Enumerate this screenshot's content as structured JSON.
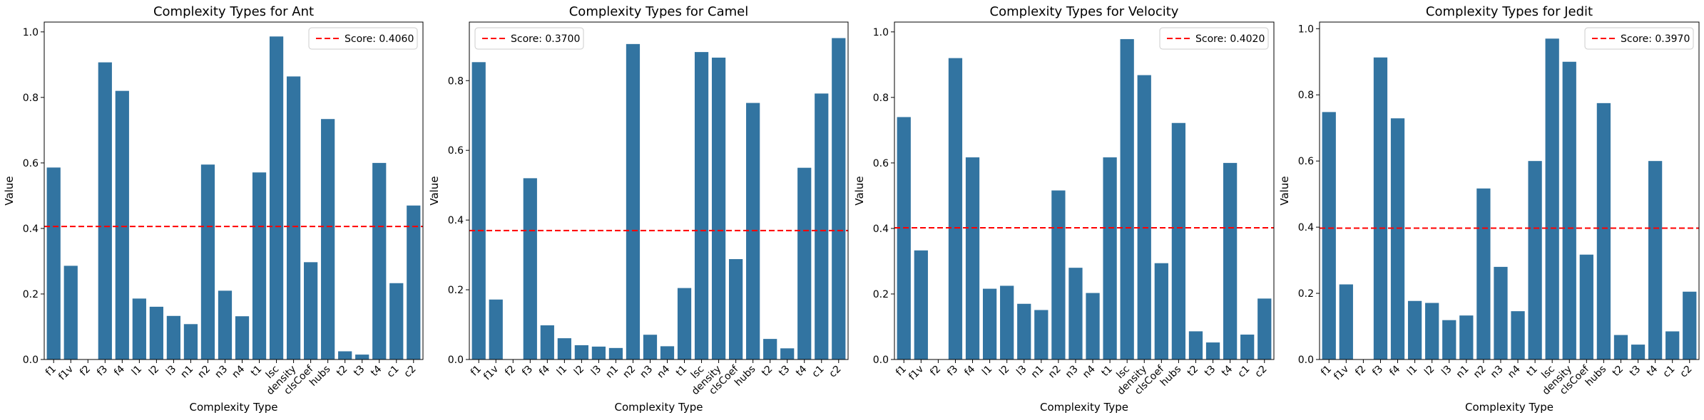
{
  "figure": {
    "background": "#ffffff"
  },
  "colors": {
    "bar": "#3274a1",
    "score_line": "#ff0000",
    "axis": "#000000"
  },
  "chart_data": [
    {
      "type": "bar",
      "title": "Complexity Types for Ant",
      "xlabel": "Complexity Type",
      "ylabel": "Value",
      "categories": [
        "f1",
        "f1v",
        "f2",
        "f3",
        "f4",
        "l1",
        "l2",
        "l3",
        "n1",
        "n2",
        "n3",
        "n4",
        "t1",
        "lsc",
        "density",
        "clsCoef",
        "hubs",
        "t2",
        "t3",
        "t4",
        "c1",
        "c2"
      ],
      "values": [
        0.586,
        0.286,
        0.0,
        0.907,
        0.82,
        0.186,
        0.161,
        0.133,
        0.108,
        0.595,
        0.21,
        0.132,
        0.571,
        0.986,
        0.864,
        0.297,
        0.734,
        0.025,
        0.015,
        0.6,
        0.233,
        0.47
      ],
      "ylim": [
        0,
        1.03
      ],
      "yticks": [
        0.0,
        0.2,
        0.4,
        0.6,
        0.8,
        1.0
      ],
      "ytick_labels": [
        "0.0",
        "0.2",
        "0.4",
        "0.6",
        "0.8",
        "1.0"
      ],
      "score": 0.406,
      "legend": {
        "label": "Score: 0.4060",
        "placement": "top-right"
      },
      "grid": false
    },
    {
      "type": "bar",
      "title": "Complexity Types for Camel",
      "xlabel": "Complexity Type",
      "ylabel": "Value",
      "categories": [
        "f1",
        "f1v",
        "f2",
        "f3",
        "f4",
        "l1",
        "l2",
        "l3",
        "n1",
        "n2",
        "n3",
        "n4",
        "t1",
        "lsc",
        "density",
        "clsCoef",
        "hubs",
        "t2",
        "t3",
        "t4",
        "c1",
        "c2"
      ],
      "values": [
        0.853,
        0.172,
        0.0,
        0.52,
        0.098,
        0.061,
        0.041,
        0.037,
        0.033,
        0.905,
        0.071,
        0.038,
        0.205,
        0.882,
        0.866,
        0.288,
        0.736,
        0.059,
        0.032,
        0.55,
        0.763,
        0.922
      ],
      "ylim": [
        0,
        0.968
      ],
      "yticks": [
        0.0,
        0.2,
        0.4,
        0.6,
        0.8
      ],
      "ytick_labels": [
        "0.0",
        "0.2",
        "0.4",
        "0.6",
        "0.8"
      ],
      "score": 0.37,
      "legend": {
        "label": "Score: 0.3700",
        "placement": "top-left"
      },
      "grid": false
    },
    {
      "type": "bar",
      "title": "Complexity Types for Velocity",
      "xlabel": "Complexity Type",
      "ylabel": "Value",
      "categories": [
        "f1",
        "f1v",
        "f2",
        "f3",
        "f4",
        "l1",
        "l2",
        "l3",
        "n1",
        "n2",
        "n3",
        "n4",
        "t1",
        "lsc",
        "density",
        "clsCoef",
        "hubs",
        "t2",
        "t3",
        "t4",
        "c1",
        "c2"
      ],
      "values": [
        0.74,
        0.333,
        0.0,
        0.92,
        0.617,
        0.216,
        0.225,
        0.17,
        0.151,
        0.516,
        0.28,
        0.203,
        0.617,
        0.978,
        0.868,
        0.294,
        0.722,
        0.086,
        0.052,
        0.6,
        0.076,
        0.186
      ],
      "ylim": [
        0,
        1.03
      ],
      "yticks": [
        0.0,
        0.2,
        0.4,
        0.6,
        0.8,
        1.0
      ],
      "ytick_labels": [
        "0.0",
        "0.2",
        "0.4",
        "0.6",
        "0.8",
        "1.0"
      ],
      "score": 0.402,
      "legend": {
        "label": "Score: 0.4020",
        "placement": "top-right"
      },
      "grid": false
    },
    {
      "type": "bar",
      "title": "Complexity Types for Jedit",
      "xlabel": "Complexity Type",
      "ylabel": "Value",
      "categories": [
        "f1",
        "f1v",
        "f2",
        "f3",
        "f4",
        "l1",
        "l2",
        "l3",
        "n1",
        "n2",
        "n3",
        "n4",
        "t1",
        "lsc",
        "density",
        "clsCoef",
        "hubs",
        "t2",
        "t3",
        "t4",
        "c1",
        "c2"
      ],
      "values": [
        0.748,
        0.227,
        0.0,
        0.913,
        0.729,
        0.177,
        0.171,
        0.119,
        0.133,
        0.517,
        0.28,
        0.146,
        0.6,
        0.97,
        0.9,
        0.317,
        0.775,
        0.074,
        0.045,
        0.6,
        0.085,
        0.205
      ],
      "ylim": [
        0,
        1.02
      ],
      "yticks": [
        0.0,
        0.2,
        0.4,
        0.6,
        0.8,
        1.0
      ],
      "ytick_labels": [
        "0.0",
        "0.2",
        "0.4",
        "0.6",
        "0.8",
        "1.0"
      ],
      "score": 0.397,
      "legend": {
        "label": "Score: 0.3970",
        "placement": "top-right"
      },
      "grid": false
    }
  ]
}
